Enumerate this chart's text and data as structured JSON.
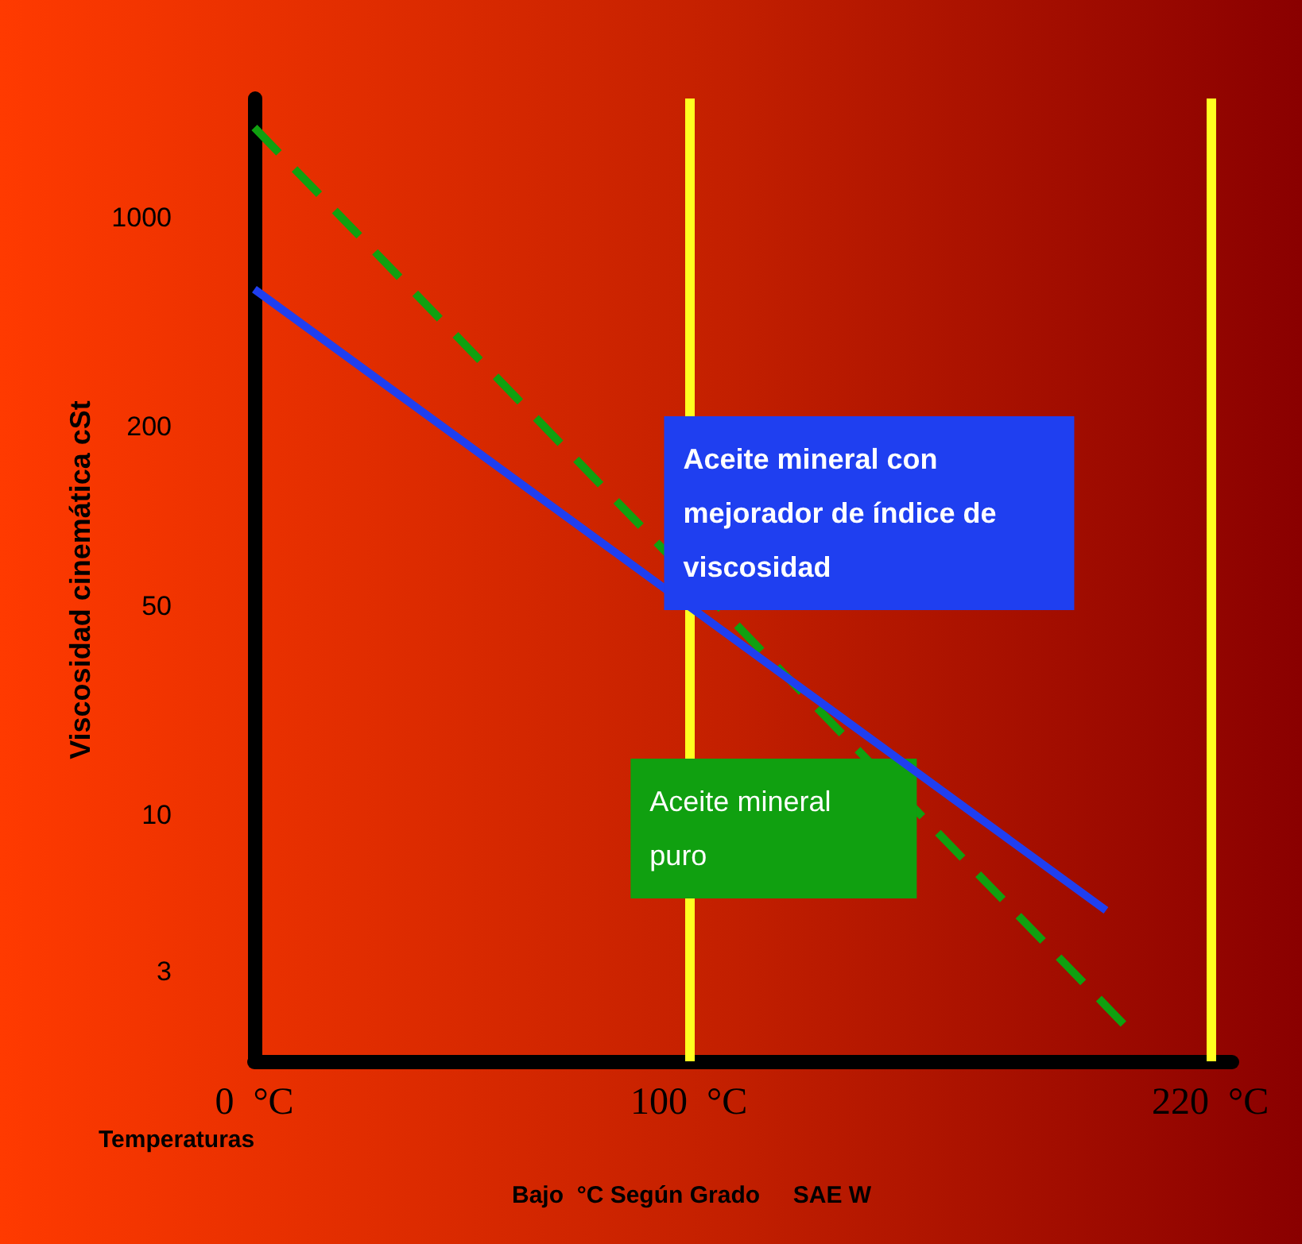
{
  "chart_data": {
    "type": "line",
    "ylabel": "Viscosidad cinemática cSt",
    "log": "y",
    "legend": false,
    "grid": false,
    "marker": "none",
    "xlim": [
      0,
      225
    ],
    "ylim": [
      1.5,
      2500
    ],
    "xticks": [
      {
        "value": 0,
        "label": "0  °C"
      },
      {
        "value": 100,
        "label": "100  °C"
      },
      {
        "value": 220,
        "label": "220  °C"
      }
    ],
    "yticks": [
      3,
      10,
      50,
      200,
      1000
    ],
    "series": [
      {
        "name": "Aceite mineral con mejorador de índice de viscosidad",
        "color": "#1f3ff0",
        "line_style": "solid",
        "x": [
          0,
          196
        ],
        "values": [
          575,
          4.8
        ]
      },
      {
        "name": "Aceite mineral puro",
        "color": "#10a010",
        "line_style": "dashed",
        "x": [
          0,
          200
        ],
        "values": [
          2000,
          2
        ]
      }
    ],
    "ref_lines": [
      {
        "axis": "x",
        "value": 100,
        "color": "#ffff20"
      },
      {
        "axis": "x",
        "value": 220,
        "color": "#ffff20"
      }
    ],
    "annotations": [
      "Temperaturas",
      "Bajo  °C Según Grado     SAE W"
    ]
  }
}
